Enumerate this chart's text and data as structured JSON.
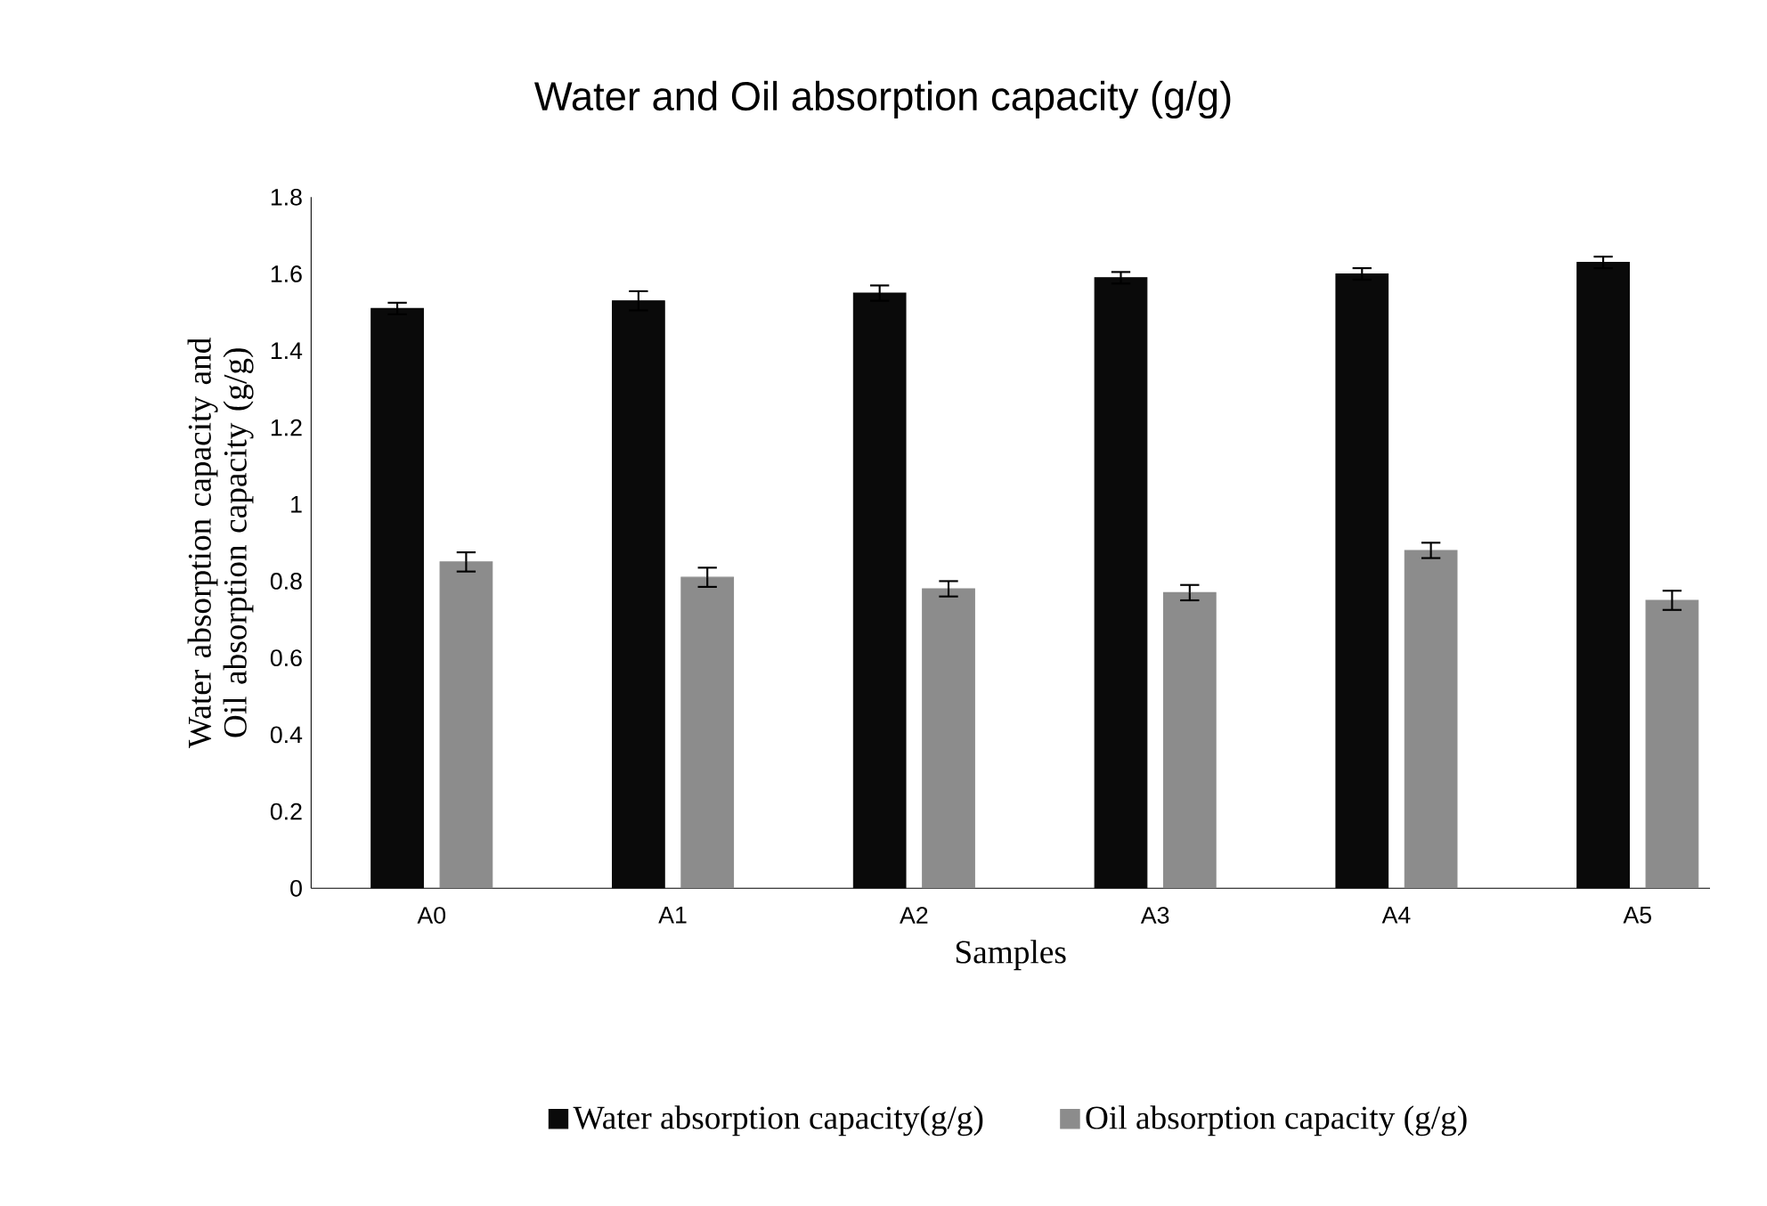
{
  "chart_data": {
    "type": "bar",
    "title": "Water and Oil absorption capacity (g/g)",
    "xlabel": "Samples",
    "ylabel": "Water absorption capacity  and Oil absorption capacity  (g/g)",
    "categories": [
      "A0",
      "A1",
      "A2",
      "A3",
      "A4",
      "A5"
    ],
    "series": [
      {
        "name": "Water absorption capacity(g/g)",
        "color": "#0a0a0a",
        "values": [
          1.51,
          1.53,
          1.55,
          1.59,
          1.6,
          1.63
        ],
        "errors": [
          0.015,
          0.025,
          0.02,
          0.015,
          0.015,
          0.015
        ]
      },
      {
        "name": "Oil absorption capacity (g/g)",
        "color": "#8c8c8c",
        "values": [
          0.85,
          0.81,
          0.78,
          0.77,
          0.88,
          0.75
        ],
        "errors": [
          0.025,
          0.025,
          0.02,
          0.02,
          0.02,
          0.025
        ]
      }
    ],
    "ylim": [
      0,
      1.8
    ],
    "yticks": [
      0,
      0.2,
      0.4,
      0.6,
      0.8,
      1,
      1.2,
      1.4,
      1.6,
      1.8
    ],
    "grid": false,
    "legend": "bottom"
  }
}
